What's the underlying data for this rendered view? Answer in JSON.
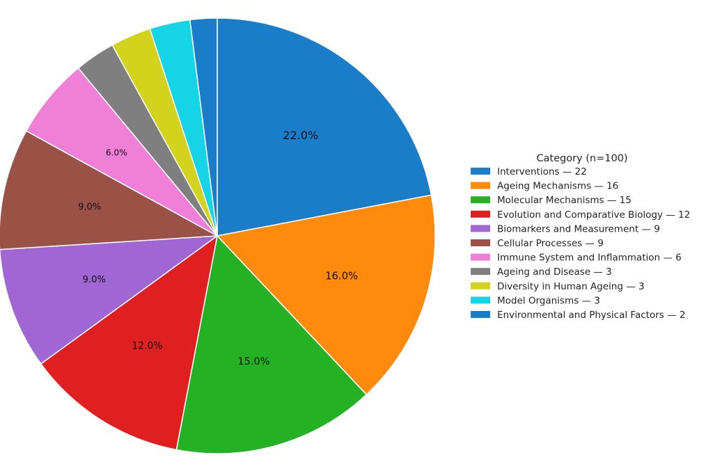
{
  "chart_data": {
    "type": "pie",
    "title": "",
    "legend_title": "Category (n=100)",
    "legend_position": "right",
    "start_angle_deg": 90,
    "direction": "clockwise",
    "slices": [
      {
        "label": "Interventions",
        "value": 22,
        "pct_label": "22.0%",
        "legend": "Interventions — 22",
        "color": "#1a7dc9"
      },
      {
        "label": "Ageing Mechanisms",
        "value": 16,
        "pct_label": "16.0%",
        "legend": "Ageing Mechanisms — 16",
        "color": "#ff8a0c"
      },
      {
        "label": "Molecular Mechanisms",
        "value": 15,
        "pct_label": "15.0%",
        "legend": "Molecular Mechanisms — 15",
        "color": "#24b224"
      },
      {
        "label": "Evolution and Comparative Biology",
        "value": 12,
        "pct_label": "12.0%",
        "legend": "Evolution and Comparative Biology — 12",
        "color": "#e02020"
      },
      {
        "label": "Biomarkers and Measurement",
        "value": 9,
        "pct_label": "9.0%",
        "legend": "Biomarkers and Measurement — 9",
        "color": "#a066d3"
      },
      {
        "label": "Cellular Processes",
        "value": 9,
        "pct_label": "9.0%",
        "legend": "Cellular Processes — 9",
        "color": "#9a5246"
      },
      {
        "label": "Immune System and Inflammation",
        "value": 6,
        "pct_label": "6.0%",
        "legend": "Immune System and Inflammation — 6",
        "color": "#f07fd8"
      },
      {
        "label": "Ageing and Disease",
        "value": 3,
        "pct_label": "",
        "legend": "Ageing and Disease — 3",
        "color": "#7f7f7f"
      },
      {
        "label": "Diversity in Human Ageing",
        "value": 3,
        "pct_label": "",
        "legend": "Diversity in Human Ageing — 3",
        "color": "#d3d31e"
      },
      {
        "label": "Model Organisms",
        "value": 3,
        "pct_label": "",
        "legend": "Model Organisms — 3",
        "color": "#17d3e6"
      },
      {
        "label": "Environmental and Physical Factors",
        "value": 2,
        "pct_label": "",
        "legend": "Environmental and Physical Factors — 2",
        "color": "#1a7dc9"
      }
    ]
  }
}
